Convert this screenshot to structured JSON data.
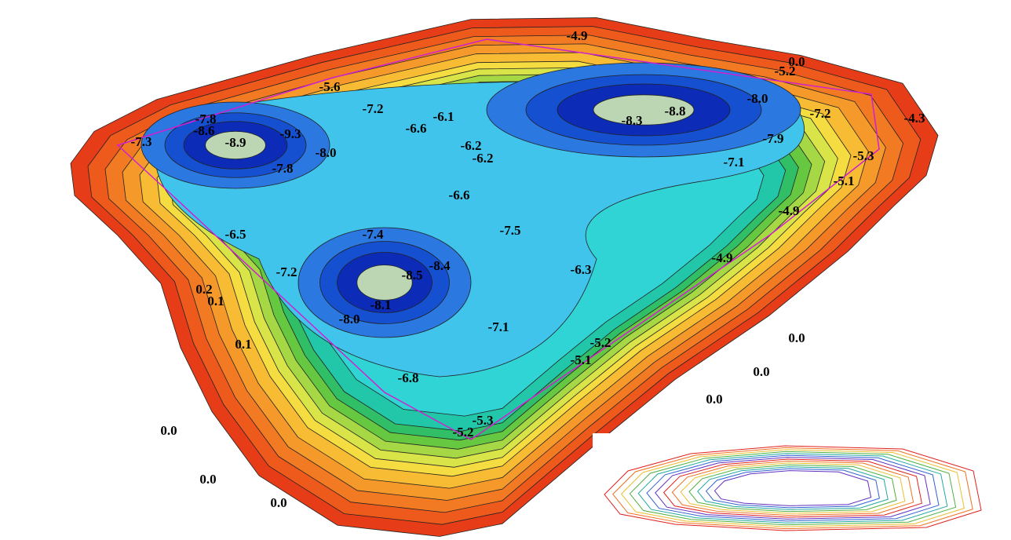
{
  "contour_labels": [
    "-5.6",
    "-7.2",
    "-7.8",
    "-8.6",
    "-9.3",
    "-8.9",
    "-8.0",
    "-7.8",
    "-7.3",
    "-6.6",
    "-6.1",
    "-6.2",
    "-6.2",
    "-4.9",
    "-8.8",
    "-8.3",
    "-8.0",
    "-7.2",
    "-7.9",
    "-7.1",
    "-5.2",
    "-5.3",
    "-5.1",
    "-4.9",
    "-4.9",
    "-6.6",
    "-6.5",
    "-7.4",
    "-7.5",
    "-7.2",
    "-8.5",
    "-8.4",
    "-6.3",
    "-8.1",
    "-8.0",
    "-7.1",
    "-5.2",
    "-5.1",
    "-6.8",
    "-5.3",
    "-5.2",
    "0.2",
    "0.1",
    "0.1",
    "0.0",
    "0.0",
    "0.0",
    "0.0",
    "0.0",
    "0.0",
    "0.0",
    "-4.3"
  ]
}
